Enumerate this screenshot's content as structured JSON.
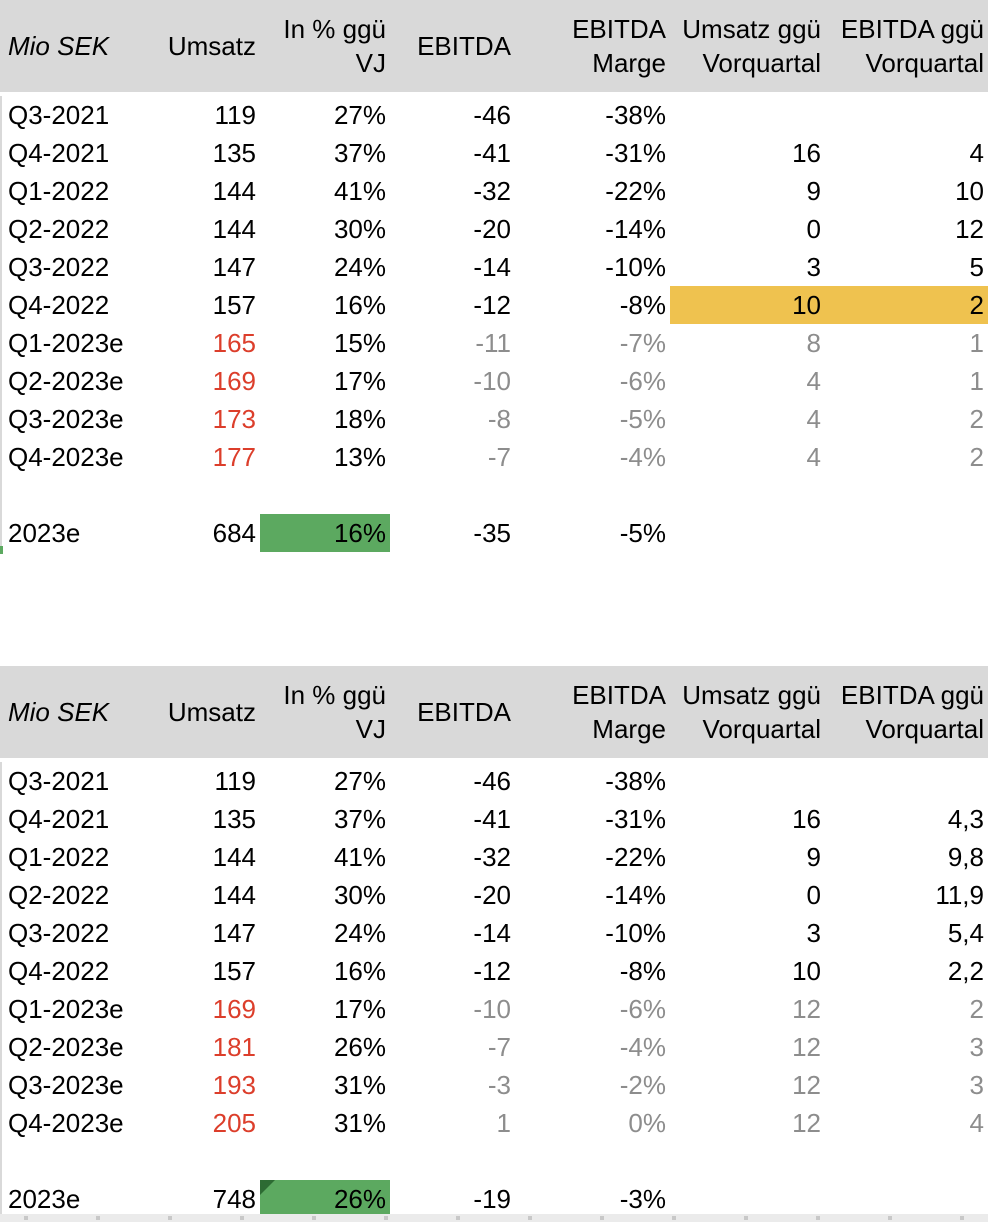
{
  "columns": [
    {
      "key": "label",
      "name": "mio-sek",
      "line1": "Mio SEK",
      "line2": ""
    },
    {
      "key": "umsatz",
      "name": "umsatz",
      "line1": "Umsatz",
      "line2": ""
    },
    {
      "key": "pct",
      "name": "pct-vs-prior-year",
      "line1": "In % ggü",
      "line2": "VJ"
    },
    {
      "key": "ebitda",
      "name": "ebitda",
      "line1": "EBITDA",
      "line2": ""
    },
    {
      "key": "marge",
      "name": "ebitda-marge",
      "line1": "EBITDA",
      "line2": "Marge"
    },
    {
      "key": "uq",
      "name": "umsatz-vs-prior-quarter",
      "line1": "Umsatz ggü",
      "line2": "Vorquartal"
    },
    {
      "key": "eq",
      "name": "ebitda-vs-prior-quarter",
      "line1": "EBITDA ggü",
      "line2": "Vorquartal"
    }
  ],
  "tables": [
    {
      "rows": [
        {
          "type": "actual",
          "label": "Q3-2021",
          "values": [
            "119",
            "27%",
            "-46",
            "-38%",
            "",
            ""
          ]
        },
        {
          "type": "actual",
          "label": "Q4-2021",
          "values": [
            "135",
            "37%",
            "-41",
            "-31%",
            "16",
            "4"
          ]
        },
        {
          "type": "actual",
          "label": "Q1-2022",
          "values": [
            "144",
            "41%",
            "-32",
            "-22%",
            "9",
            "10"
          ]
        },
        {
          "type": "actual",
          "label": "Q2-2022",
          "values": [
            "144",
            "30%",
            "-20",
            "-14%",
            "0",
            "12"
          ]
        },
        {
          "type": "actual",
          "label": "Q3-2022",
          "values": [
            "147",
            "24%",
            "-14",
            "-10%",
            "3",
            "5"
          ]
        },
        {
          "type": "actual",
          "label": "Q4-2022",
          "values": [
            "157",
            "16%",
            "-12",
            "-8%",
            "10",
            "2"
          ],
          "highlight_last_two": true
        },
        {
          "type": "forecast",
          "label": "Q1-2023e",
          "values": [
            "165",
            "15%",
            "-11",
            "-7%",
            "8",
            "1"
          ]
        },
        {
          "type": "forecast",
          "label": "Q2-2023e",
          "values": [
            "169",
            "17%",
            "-10",
            "-6%",
            "4",
            "1"
          ]
        },
        {
          "type": "forecast",
          "label": "Q3-2023e",
          "values": [
            "173",
            "18%",
            "-8",
            "-5%",
            "4",
            "2"
          ]
        },
        {
          "type": "forecast",
          "label": "Q4-2023e",
          "values": [
            "177",
            "13%",
            "-7",
            "-4%",
            "4",
            "2"
          ]
        },
        {
          "type": "blank",
          "label": "",
          "values": [
            "",
            "",
            "",
            "",
            "",
            ""
          ]
        },
        {
          "type": "total",
          "label": "2023e",
          "values": [
            "684",
            "16%",
            "-35",
            "-5%",
            "",
            ""
          ],
          "green_pct": true,
          "flag_triangle": false
        }
      ]
    },
    {
      "rows": [
        {
          "type": "actual",
          "label": "Q3-2021",
          "values": [
            "119",
            "27%",
            "-46",
            "-38%",
            "",
            ""
          ]
        },
        {
          "type": "actual",
          "label": "Q4-2021",
          "values": [
            "135",
            "37%",
            "-41",
            "-31%",
            "16",
            "4,3"
          ]
        },
        {
          "type": "actual",
          "label": "Q1-2022",
          "values": [
            "144",
            "41%",
            "-32",
            "-22%",
            "9",
            "9,8"
          ]
        },
        {
          "type": "actual",
          "label": "Q2-2022",
          "values": [
            "144",
            "30%",
            "-20",
            "-14%",
            "0",
            "11,9"
          ]
        },
        {
          "type": "actual",
          "label": "Q3-2022",
          "values": [
            "147",
            "24%",
            "-14",
            "-10%",
            "3",
            "5,4"
          ]
        },
        {
          "type": "actual",
          "label": "Q4-2022",
          "values": [
            "157",
            "16%",
            "-12",
            "-8%",
            "10",
            "2,2"
          ]
        },
        {
          "type": "forecast",
          "label": "Q1-2023e",
          "values": [
            "169",
            "17%",
            "-10",
            "-6%",
            "12",
            "2"
          ]
        },
        {
          "type": "forecast",
          "label": "Q2-2023e",
          "values": [
            "181",
            "26%",
            "-7",
            "-4%",
            "12",
            "3"
          ]
        },
        {
          "type": "forecast",
          "label": "Q3-2023e",
          "values": [
            "193",
            "31%",
            "-3",
            "-2%",
            "12",
            "3"
          ]
        },
        {
          "type": "forecast",
          "label": "Q4-2023e",
          "values": [
            "205",
            "31%",
            "1",
            "0%",
            "12",
            "4"
          ]
        },
        {
          "type": "blank",
          "label": "",
          "values": [
            "",
            "",
            "",
            "",
            "",
            ""
          ]
        },
        {
          "type": "total",
          "label": "2023e",
          "values": [
            "748",
            "26%",
            "-19",
            "-3%",
            "",
            ""
          ],
          "green_pct": true,
          "flag_triangle": true
        }
      ]
    }
  ],
  "colors": {
    "header_bg": "#d9d9d9",
    "forecast_red": "#dc3e2b",
    "muted_gray": "#8d8d8d",
    "highlight_yellow": "#efc24f",
    "highlight_green": "#5ca960",
    "triangle_green": "#2d6b33",
    "strip_bg": "#ebebeb",
    "tick": "#c8c8c8",
    "grid_line": "#d9d9d9"
  }
}
